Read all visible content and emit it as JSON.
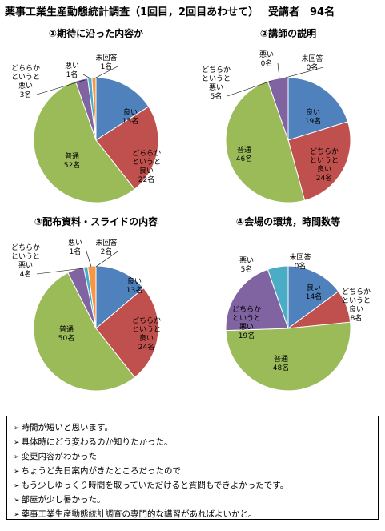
{
  "header": {
    "title": "薬事工業生産動態統計調査（1回目，2回目あわせて）",
    "attendees": "受講者　94名"
  },
  "chart_data": [
    {
      "type": "pie",
      "title": "①期待に沿った内容か",
      "slices": [
        {
          "label_lines": [
            "良い",
            "15名"
          ],
          "value": 15,
          "color": "#4f81bd",
          "label_color": "#000000"
        },
        {
          "label_lines": [
            "どちらか",
            "というと",
            "良い",
            "22名"
          ],
          "value": 22,
          "color": "#c0504d",
          "label_color": "#000000"
        },
        {
          "label_lines": [
            "普通",
            "52名"
          ],
          "value": 52,
          "color": "#9bbb59",
          "label_color": "#000000"
        },
        {
          "label_lines": [
            "どちらか",
            "というと",
            "悪い",
            "3名"
          ],
          "value": 3,
          "color": "#8064a2",
          "label_color": "#000000"
        },
        {
          "label_lines": [
            "悪い",
            "1名"
          ],
          "value": 1,
          "color": "#4bacc6",
          "label_color": "#000000"
        },
        {
          "label_lines": [
            "未回答",
            "1名"
          ],
          "value": 1,
          "color": "#f79646",
          "label_color": "#000000"
        }
      ]
    },
    {
      "type": "pie",
      "title": "②講師の説明",
      "slices": [
        {
          "label_lines": [
            "良い",
            "19名"
          ],
          "value": 19,
          "color": "#4f81bd",
          "label_color": "#000000"
        },
        {
          "label_lines": [
            "どちらか",
            "というと",
            "良い",
            "24名"
          ],
          "value": 24,
          "color": "#c0504d",
          "label_color": "#000000"
        },
        {
          "label_lines": [
            "普通",
            "46名"
          ],
          "value": 46,
          "color": "#9bbb59",
          "label_color": "#000000"
        },
        {
          "label_lines": [
            "どちらか",
            "というと",
            "悪い",
            "5名"
          ],
          "value": 5,
          "color": "#8064a2",
          "label_color": "#000000"
        },
        {
          "label_lines": [
            "悪い",
            "0名"
          ],
          "value": 0,
          "color": "#4bacc6",
          "label_color": "#000000"
        },
        {
          "label_lines": [
            "未回答",
            "0名"
          ],
          "value": 0,
          "color": "#f79646",
          "label_color": "#000000"
        }
      ]
    },
    {
      "type": "pie",
      "title": "③配布資料・スライドの内容",
      "slices": [
        {
          "label_lines": [
            "良い",
            "13名"
          ],
          "value": 13,
          "color": "#4f81bd",
          "label_color": "#000000"
        },
        {
          "label_lines": [
            "どちらか",
            "というと",
            "良い",
            "24名"
          ],
          "value": 24,
          "color": "#c0504d",
          "label_color": "#000000"
        },
        {
          "label_lines": [
            "普通",
            "50名"
          ],
          "value": 50,
          "color": "#9bbb59",
          "label_color": "#000000"
        },
        {
          "label_lines": [
            "どちらか",
            "というと",
            "悪い",
            "4名"
          ],
          "value": 4,
          "color": "#8064a2",
          "label_color": "#000000"
        },
        {
          "label_lines": [
            "悪い",
            "1名"
          ],
          "value": 1,
          "color": "#4bacc6",
          "label_color": "#000000"
        },
        {
          "label_lines": [
            "未回答",
            "2名"
          ],
          "value": 2,
          "color": "#f79646",
          "label_color": "#000000"
        }
      ]
    },
    {
      "type": "pie",
      "title": "④会場の環境，時間数等",
      "slices": [
        {
          "label_lines": [
            "良い",
            "14名"
          ],
          "value": 14,
          "color": "#4f81bd",
          "label_color": "#000000"
        },
        {
          "label_lines": [
            "どちらか",
            "というと",
            "良い",
            "8名"
          ],
          "value": 8,
          "color": "#c0504d",
          "label_color": "#000000"
        },
        {
          "label_lines": [
            "普通",
            "48名"
          ],
          "value": 48,
          "color": "#9bbb59",
          "label_color": "#000000"
        },
        {
          "label_lines": [
            "どちらか",
            "というと",
            "悪い",
            "19名"
          ],
          "value": 19,
          "color": "#8064a2",
          "label_color": "#000000"
        },
        {
          "label_lines": [
            "悪い",
            "5名"
          ],
          "value": 5,
          "color": "#4bacc6",
          "label_color": "#000000"
        },
        {
          "label_lines": [
            "未回答",
            "0名"
          ],
          "value": 0,
          "color": "#f79646",
          "label_color": "#000000"
        }
      ]
    }
  ],
  "comments": {
    "bullet": "➢",
    "items": [
      "時間が短いと思います。",
      "具体時にどう変わるのか知りたかった。",
      "変更内容がわかった",
      "ちょうど先日案内がきたところだったので",
      "もう少しゆっくり時間を取っていただけると質問もできよかったです。",
      "部屋が少し暑かった。",
      "薬事工業生産動態統計調査の専門的な講習があればよいかと。"
    ]
  }
}
